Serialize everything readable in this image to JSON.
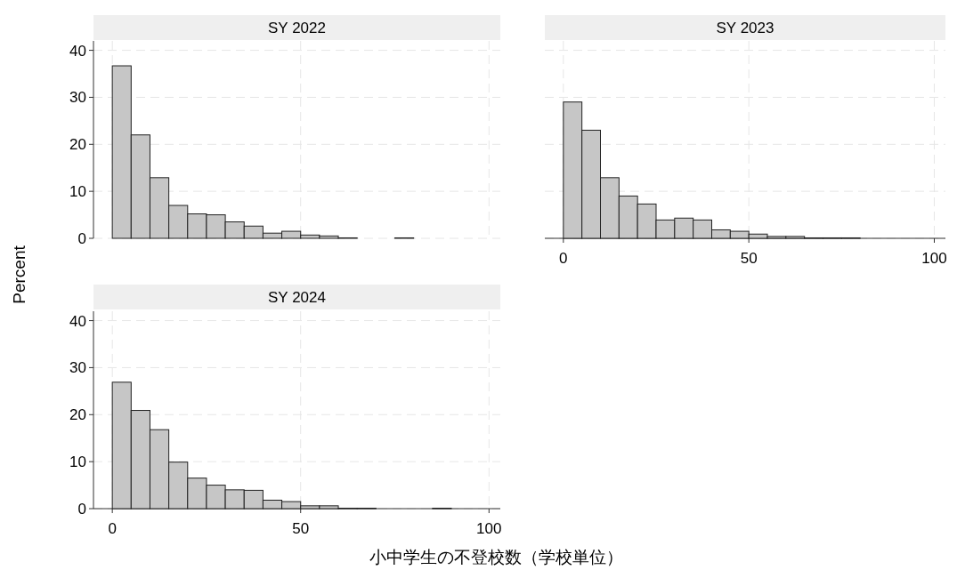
{
  "chart_data": [
    {
      "type": "histogram",
      "title": "SY 2022",
      "bins": [
        0,
        5,
        10,
        15,
        20,
        25,
        30,
        35,
        40,
        45,
        50,
        55,
        60,
        65,
        70,
        75,
        80,
        85,
        90,
        95,
        100
      ],
      "values": [
        36.7,
        22.0,
        12.9,
        7.0,
        5.2,
        5.0,
        3.5,
        2.6,
        1.1,
        1.5,
        0.7,
        0.5,
        0.1,
        0,
        0,
        0.1,
        0,
        0,
        0,
        0
      ],
      "color": "#c6c6c6",
      "xlim": [
        -5,
        103
      ],
      "ylim": [
        0,
        42
      ],
      "xticks": [
        0,
        50,
        100
      ],
      "yticks": [
        0,
        10,
        20,
        30,
        40
      ],
      "grid": true,
      "tick_labels": "y"
    },
    {
      "type": "histogram",
      "title": "SY 2023",
      "bins": [
        0,
        5,
        10,
        15,
        20,
        25,
        30,
        35,
        40,
        45,
        50,
        55,
        60,
        65,
        70,
        75,
        80,
        85,
        90,
        95,
        100
      ],
      "values": [
        29.0,
        23.0,
        12.9,
        9.0,
        7.3,
        3.9,
        4.3,
        3.9,
        1.8,
        1.5,
        0.9,
        0.4,
        0.4,
        0.1,
        0.1,
        0.1,
        0,
        0,
        0,
        0
      ],
      "color": "#c6c6c6",
      "xlim": [
        -5,
        103
      ],
      "ylim": [
        0,
        42
      ],
      "xticks": [
        0,
        50,
        100
      ],
      "yticks": [
        0,
        10,
        20,
        30,
        40
      ],
      "grid": true,
      "tick_labels": "x"
    },
    {
      "type": "histogram",
      "title": "SY 2024",
      "xlabel": "小中学生の不登校数（学校単位）",
      "ylabel": "Percent",
      "bins": [
        0,
        5,
        10,
        15,
        20,
        25,
        30,
        35,
        40,
        45,
        50,
        55,
        60,
        65,
        70,
        75,
        80,
        85,
        90,
        95,
        100
      ],
      "values": [
        26.9,
        20.9,
        16.8,
        9.9,
        6.5,
        5.0,
        4.0,
        3.9,
        1.8,
        1.5,
        0.6,
        0.6,
        0.1,
        0.1,
        0,
        0,
        0,
        0.1,
        0,
        0
      ],
      "color": "#c6c6c6",
      "xlim": [
        -5,
        103
      ],
      "ylim": [
        0,
        42
      ],
      "xticks": [
        0,
        50,
        100
      ],
      "yticks": [
        0,
        10,
        20,
        30,
        40
      ],
      "grid": true
    }
  ]
}
